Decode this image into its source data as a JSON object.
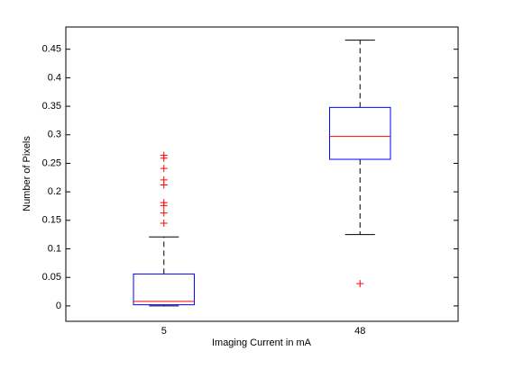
{
  "chart_data": {
    "type": "box",
    "x_label": "Imaging Current in mA",
    "y_label": "Number of Pixels",
    "categories": [
      "5",
      "48"
    ],
    "boxes": [
      {
        "whisker_low": 0,
        "q1": 0.002,
        "median": 0.008,
        "q3": 0.056,
        "whisker_high": 0.121,
        "outliers": [
          0.145,
          0.163,
          0.176,
          0.181,
          0.212,
          0.221,
          0.241,
          0.259,
          0.264
        ]
      },
      {
        "whisker_low": 0.125,
        "q1": 0.257,
        "median": 0.297,
        "q3": 0.348,
        "whisker_high": 0.466,
        "outliers": [
          0.039
        ]
      }
    ],
    "box_color": "#0000ff",
    "median_color": "#ff0000",
    "whisker_color": "#000000",
    "outlier_color": "#ff0000",
    "ylim": [
      -0.027,
      0.489
    ],
    "yticks": [
      0,
      0.05,
      0.1,
      0.15,
      0.2,
      0.25,
      0.3,
      0.35,
      0.4,
      0.45
    ],
    "grid": false
  }
}
